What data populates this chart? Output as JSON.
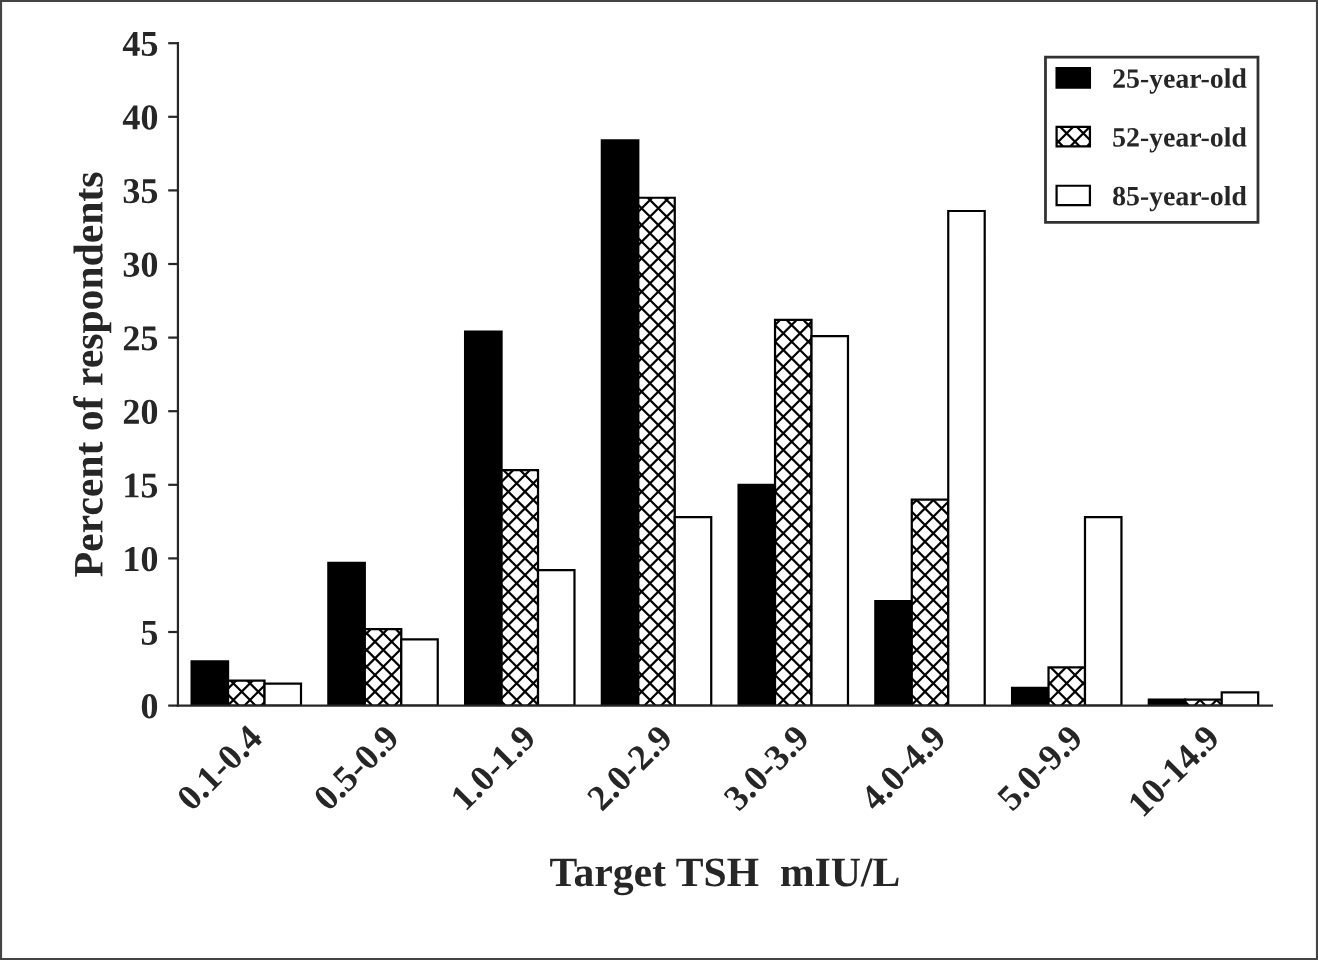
{
  "chart_data": {
    "type": "bar",
    "xlabel": "Target TSH  mIU/L",
    "ylabel": "Percent of respondents",
    "categories": [
      "0.1-0.4",
      "0.5-0.9",
      "1.0-1.9",
      "2.0-2.9",
      "3.0-3.9",
      "4.0-4.9",
      "5.0-9.9",
      "10-14.9"
    ],
    "series": [
      {
        "name": "25-year-old",
        "color": "#000000",
        "values": [
          3.0,
          9.7,
          25.4,
          38.4,
          15.0,
          7.1,
          1.2,
          0.4
        ]
      },
      {
        "name": "52-year-old",
        "color": "#000000",
        "values": [
          1.7,
          5.2,
          16.0,
          34.5,
          26.2,
          14.0,
          2.6,
          0.4
        ]
      },
      {
        "name": "85-year-old",
        "color": "#ffffff",
        "values": [
          1.5,
          4.5,
          9.2,
          12.8,
          25.1,
          33.6,
          12.8,
          0.9
        ]
      }
    ],
    "ylim": [
      0,
      45
    ],
    "yticks": [
      0,
      5,
      10,
      15,
      20,
      25,
      30,
      35,
      40,
      45
    ],
    "grid": false,
    "legend": "top right"
  }
}
